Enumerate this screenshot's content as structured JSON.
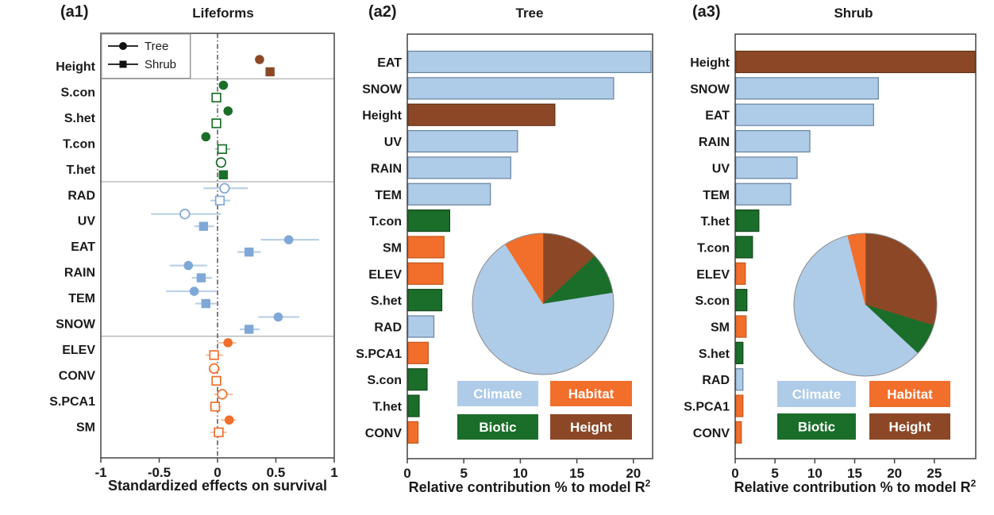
{
  "figure": {
    "panels": [
      {
        "tag": "(a1)",
        "title": "Lifeforms",
        "xlabel": "Standardized effects on survival"
      },
      {
        "tag": "(a2)",
        "title": "Tree",
        "xlabel_main": "Relative contribution % to model R",
        "xlabel_sup": "2"
      },
      {
        "tag": "(a3)",
        "title": "Shrub",
        "xlabel_main": "Relative contribution % to model R",
        "xlabel_sup": "2"
      }
    ]
  },
  "colors": {
    "climate": "#AECBE8",
    "habitat": "#F26E2B",
    "biotic": "#1B6E2A",
    "height": "#8C4826",
    "marker_blue": "#7FA8D8",
    "error_blue": "#BAD0E7",
    "error_green": "#86B595",
    "error_orange": "#F2AE82",
    "climate_border": "#66839E",
    "habitat_border": "#C2581C",
    "biotic_border": "#11471B",
    "height_border": "#5E2E14",
    "axis": "#444444",
    "separator": "#9A9A9A",
    "legend_text": "#FFFFFF"
  },
  "chart_data": [
    {
      "type": "scatter",
      "panel": "a1",
      "title": "Lifeforms",
      "xlabel": "Standardized effects on survival",
      "xlim": [
        -1,
        1
      ],
      "xticks": [
        -1,
        -0.5,
        0,
        0.5,
        1
      ],
      "reference_line_x": 0,
      "legend": [
        {
          "label": "Tree",
          "marker": "circle"
        },
        {
          "label": "Shrub",
          "marker": "square"
        }
      ],
      "separators_after": [
        "Height",
        "T.het",
        "SNOW"
      ],
      "rows": [
        {
          "label": "Height",
          "group": "height",
          "tree": {
            "est": 0.36,
            "lo": 0.34,
            "hi": 0.39,
            "filled": true
          },
          "shrub": {
            "est": 0.45,
            "lo": 0.43,
            "hi": 0.47,
            "filled": true
          }
        },
        {
          "label": "S.con",
          "group": "biotic",
          "tree": {
            "est": 0.05,
            "lo": 0.02,
            "hi": 0.09,
            "filled": true
          },
          "shrub": {
            "est": -0.01,
            "lo": -0.04,
            "hi": 0.02,
            "filled": false
          }
        },
        {
          "label": "S.het",
          "group": "biotic",
          "tree": {
            "est": 0.09,
            "lo": 0.06,
            "hi": 0.12,
            "filled": true
          },
          "shrub": {
            "est": -0.01,
            "lo": -0.03,
            "hi": 0.02,
            "filled": false
          }
        },
        {
          "label": "T.con",
          "group": "biotic",
          "tree": {
            "est": -0.1,
            "lo": -0.13,
            "hi": -0.07,
            "filled": true
          },
          "shrub": {
            "est": 0.04,
            "lo": -0.02,
            "hi": 0.11,
            "filled": false
          }
        },
        {
          "label": "T.het",
          "group": "biotic",
          "tree": {
            "est": 0.03,
            "lo": 0.0,
            "hi": 0.06,
            "filled": false
          },
          "shrub": {
            "est": 0.05,
            "lo": 0.02,
            "hi": 0.08,
            "filled": true
          }
        },
        {
          "label": "RAD",
          "group": "climate",
          "tree": {
            "est": 0.06,
            "lo": -0.12,
            "hi": 0.26,
            "filled": false
          },
          "shrub": {
            "est": 0.02,
            "lo": -0.06,
            "hi": 0.11,
            "filled": false
          }
        },
        {
          "label": "UV",
          "group": "climate",
          "tree": {
            "est": -0.28,
            "lo": -0.57,
            "hi": 0.03,
            "filled": false
          },
          "shrub": {
            "est": -0.12,
            "lo": -0.2,
            "hi": -0.03,
            "filled": true
          }
        },
        {
          "label": "EAT",
          "group": "climate",
          "tree": {
            "est": 0.61,
            "lo": 0.37,
            "hi": 0.87,
            "filled": true
          },
          "shrub": {
            "est": 0.27,
            "lo": 0.17,
            "hi": 0.37,
            "filled": true
          }
        },
        {
          "label": "RAIN",
          "group": "climate",
          "tree": {
            "est": -0.25,
            "lo": -0.41,
            "hi": -0.09,
            "filled": true
          },
          "shrub": {
            "est": -0.14,
            "lo": -0.22,
            "hi": -0.05,
            "filled": true
          }
        },
        {
          "label": "TEM",
          "group": "climate",
          "tree": {
            "est": -0.2,
            "lo": -0.44,
            "hi": -0.01,
            "filled": true
          },
          "shrub": {
            "est": -0.1,
            "lo": -0.19,
            "hi": -0.01,
            "filled": true
          }
        },
        {
          "label": "SNOW",
          "group": "climate",
          "tree": {
            "est": 0.52,
            "lo": 0.35,
            "hi": 0.7,
            "filled": true
          },
          "shrub": {
            "est": 0.27,
            "lo": 0.19,
            "hi": 0.36,
            "filled": true
          }
        },
        {
          "label": "ELEV",
          "group": "habitat",
          "tree": {
            "est": 0.09,
            "lo": 0.0,
            "hi": 0.16,
            "filled": true
          },
          "shrub": {
            "est": -0.03,
            "lo": -0.1,
            "hi": 0.05,
            "filled": false
          }
        },
        {
          "label": "CONV",
          "group": "habitat",
          "tree": {
            "est": -0.03,
            "lo": -0.07,
            "hi": 0.02,
            "filled": false
          },
          "shrub": {
            "est": -0.01,
            "lo": -0.04,
            "hi": 0.02,
            "filled": false
          }
        },
        {
          "label": "S.PCA1",
          "group": "habitat",
          "tree": {
            "est": 0.04,
            "lo": -0.03,
            "hi": 0.13,
            "filled": false
          },
          "shrub": {
            "est": -0.02,
            "lo": -0.07,
            "hi": 0.03,
            "filled": false
          }
        },
        {
          "label": "SM",
          "group": "habitat",
          "tree": {
            "est": 0.1,
            "lo": 0.03,
            "hi": 0.16,
            "filled": true
          },
          "shrub": {
            "est": 0.01,
            "lo": -0.06,
            "hi": 0.08,
            "filled": false
          }
        }
      ]
    },
    {
      "type": "bar",
      "panel": "a2",
      "title": "Tree",
      "xlabel": "Relative contribution % to model R²",
      "xlim": [
        0,
        21.7
      ],
      "xticks": [
        0,
        5,
        10,
        15,
        20
      ],
      "bars": [
        {
          "label": "EAT",
          "value": 21.5,
          "group": "climate"
        },
        {
          "label": "SNOW",
          "value": 18.2,
          "group": "climate"
        },
        {
          "label": "Height",
          "value": 13.0,
          "group": "height"
        },
        {
          "label": "UV",
          "value": 9.7,
          "group": "climate"
        },
        {
          "label": "RAIN",
          "value": 9.1,
          "group": "climate"
        },
        {
          "label": "TEM",
          "value": 7.3,
          "group": "climate"
        },
        {
          "label": "T.con",
          "value": 3.7,
          "group": "biotic"
        },
        {
          "label": "SM",
          "value": 3.2,
          "group": "habitat"
        },
        {
          "label": "ELEV",
          "value": 3.1,
          "group": "habitat"
        },
        {
          "label": "S.het",
          "value": 3.0,
          "group": "biotic"
        },
        {
          "label": "RAD",
          "value": 2.3,
          "group": "climate"
        },
        {
          "label": "S.PCA1",
          "value": 1.8,
          "group": "habitat"
        },
        {
          "label": "S.con",
          "value": 1.7,
          "group": "biotic"
        },
        {
          "label": "T.het",
          "value": 1.0,
          "group": "biotic"
        },
        {
          "label": "CONV",
          "value": 0.9,
          "group": "habitat"
        }
      ],
      "pie": {
        "slices": [
          {
            "label": "Height",
            "group": "height",
            "pct": 13.1
          },
          {
            "label": "Biotic",
            "group": "biotic",
            "pct": 9.4
          },
          {
            "label": "Climate",
            "group": "climate",
            "pct": 68.5
          },
          {
            "label": "Habitat",
            "group": "habitat",
            "pct": 9.0
          }
        ]
      },
      "legend": [
        {
          "label": "Climate",
          "group": "climate"
        },
        {
          "label": "Habitat",
          "group": "habitat"
        },
        {
          "label": "Biotic",
          "group": "biotic"
        },
        {
          "label": "Height",
          "group": "height"
        }
      ]
    },
    {
      "type": "bar",
      "panel": "a3",
      "title": "Shrub",
      "xlabel": "Relative contribution % to model R²",
      "xlim": [
        0,
        30.2
      ],
      "xticks": [
        0,
        5,
        10,
        15,
        20,
        25
      ],
      "bars": [
        {
          "label": "Height",
          "value": 30.1,
          "group": "height"
        },
        {
          "label": "SNOW",
          "value": 17.9,
          "group": "climate"
        },
        {
          "label": "EAT",
          "value": 17.3,
          "group": "climate"
        },
        {
          "label": "RAIN",
          "value": 9.3,
          "group": "climate"
        },
        {
          "label": "UV",
          "value": 7.7,
          "group": "climate"
        },
        {
          "label": "TEM",
          "value": 6.9,
          "group": "climate"
        },
        {
          "label": "T.het",
          "value": 2.9,
          "group": "biotic"
        },
        {
          "label": "T.con",
          "value": 2.1,
          "group": "biotic"
        },
        {
          "label": "ELEV",
          "value": 1.2,
          "group": "habitat"
        },
        {
          "label": "S.con",
          "value": 1.4,
          "group": "biotic"
        },
        {
          "label": "SM",
          "value": 1.3,
          "group": "habitat"
        },
        {
          "label": "S.het",
          "value": 0.9,
          "group": "biotic"
        },
        {
          "label": "RAD",
          "value": 0.9,
          "group": "climate"
        },
        {
          "label": "S.PCA1",
          "value": 0.9,
          "group": "habitat"
        },
        {
          "label": "CONV",
          "value": 0.7,
          "group": "habitat"
        }
      ],
      "pie": {
        "slices": [
          {
            "label": "Height",
            "group": "height",
            "pct": 29.7
          },
          {
            "label": "Biotic",
            "group": "biotic",
            "pct": 7.2
          },
          {
            "label": "Climate",
            "group": "climate",
            "pct": 59.1
          },
          {
            "label": "Habitat",
            "group": "habitat",
            "pct": 4.0
          }
        ]
      },
      "legend": [
        {
          "label": "Climate",
          "group": "climate"
        },
        {
          "label": "Habitat",
          "group": "habitat"
        },
        {
          "label": "Biotic",
          "group": "biotic"
        },
        {
          "label": "Height",
          "group": "height"
        }
      ]
    }
  ]
}
